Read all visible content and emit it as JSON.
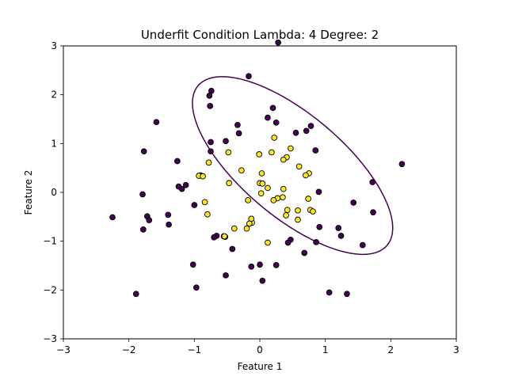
{
  "chart_data": {
    "type": "scatter",
    "title": "Underfit Condition  Lambda: 4 Degree: 2",
    "xlabel": "Feature 1",
    "ylabel": "Feature 2",
    "xlim": [
      -3,
      3
    ],
    "ylim": [
      -3,
      3
    ],
    "xticks": [
      -3,
      -2,
      -1,
      0,
      1,
      2,
      3
    ],
    "yticks": [
      -3,
      -2,
      -1,
      0,
      1,
      2,
      3
    ],
    "grid": false,
    "legend": "none",
    "colors": {
      "class_0": "#440154",
      "class_1": "#fde725",
      "boundary": "#440154",
      "marker_edge": "#000000"
    },
    "decision_boundary": {
      "shape": "ellipse",
      "center": [
        0.5,
        0.55
      ],
      "semi_axes": [
        0.9,
        2.2
      ],
      "rotation_deg": 38
    },
    "series": [
      {
        "class": 0,
        "points": [
          [
            0.28,
            3.07
          ],
          [
            -0.17,
            2.38
          ],
          [
            -0.74,
            2.08
          ],
          [
            -0.77,
            1.98
          ],
          [
            0.2,
            1.73
          ],
          [
            -0.76,
            1.77
          ],
          [
            0.12,
            1.53
          ],
          [
            0.25,
            1.43
          ],
          [
            -1.58,
            1.44
          ],
          [
            -0.34,
            1.38
          ],
          [
            0.78,
            1.36
          ],
          [
            0.71,
            1.26
          ],
          [
            0.55,
            1.22
          ],
          [
            -0.32,
            1.21
          ],
          [
            -0.75,
            1.03
          ],
          [
            -0.52,
            1.05
          ],
          [
            -1.77,
            0.84
          ],
          [
            0.85,
            0.86
          ],
          [
            -0.75,
            0.84
          ],
          [
            -1.26,
            0.64
          ],
          [
            -1.24,
            0.12
          ],
          [
            -1.13,
            0.15
          ],
          [
            -1.19,
            0.07
          ],
          [
            1.72,
            0.21
          ],
          [
            2.17,
            0.58
          ],
          [
            -0.91,
            0.35
          ],
          [
            0.9,
            0.01
          ],
          [
            -1.79,
            -0.04
          ],
          [
            -1.0,
            -0.26
          ],
          [
            1.43,
            -0.21
          ],
          [
            -1.72,
            -0.49
          ],
          [
            -1.69,
            -0.57
          ],
          [
            1.73,
            -0.41
          ],
          [
            -2.25,
            -0.51
          ],
          [
            -1.4,
            -0.46
          ],
          [
            -1.39,
            -0.66
          ],
          [
            -1.78,
            -0.76
          ],
          [
            0.91,
            -0.71
          ],
          [
            1.2,
            -0.73
          ],
          [
            1.24,
            -0.89
          ],
          [
            -0.66,
            -0.89
          ],
          [
            -0.7,
            -0.92
          ],
          [
            -0.55,
            -0.9
          ],
          [
            -0.53,
            -0.91
          ],
          [
            0.47,
            -0.97
          ],
          [
            0.43,
            -1.03
          ],
          [
            0.86,
            -1.02
          ],
          [
            -0.15,
            -0.63
          ],
          [
            -0.42,
            -1.16
          ],
          [
            1.57,
            -1.08
          ],
          [
            0.68,
            -1.24
          ],
          [
            -1.02,
            -1.48
          ],
          [
            0.0,
            -1.48
          ],
          [
            -0.13,
            -1.52
          ],
          [
            0.25,
            -1.49
          ],
          [
            -0.52,
            -1.7
          ],
          [
            0.04,
            -1.81
          ],
          [
            -0.97,
            -1.95
          ],
          [
            1.06,
            -2.05
          ],
          [
            1.33,
            -2.08
          ],
          [
            -1.89,
            -2.08
          ]
        ]
      },
      {
        "class": 1,
        "points": [
          [
            0.22,
            1.12
          ],
          [
            0.47,
            0.9
          ],
          [
            -0.78,
            0.61
          ],
          [
            0.41,
            0.72
          ],
          [
            0.36,
            0.67
          ],
          [
            0.18,
            0.82
          ],
          [
            -0.48,
            0.82
          ],
          [
            -0.01,
            0.78
          ],
          [
            0.6,
            0.53
          ],
          [
            -0.28,
            0.45
          ],
          [
            0.03,
            0.39
          ],
          [
            0.75,
            0.39
          ],
          [
            0.7,
            0.35
          ],
          [
            -0.93,
            0.34
          ],
          [
            -0.87,
            0.33
          ],
          [
            -0.47,
            0.19
          ],
          [
            0.0,
            0.19
          ],
          [
            0.04,
            0.18
          ],
          [
            0.12,
            0.09
          ],
          [
            0.36,
            0.07
          ],
          [
            0.02,
            -0.02
          ],
          [
            0.35,
            -0.1
          ],
          [
            0.27,
            -0.12
          ],
          [
            0.21,
            -0.16
          ],
          [
            -0.18,
            -0.16
          ],
          [
            0.74,
            -0.13
          ],
          [
            -0.84,
            -0.2
          ],
          [
            0.42,
            -0.36
          ],
          [
            0.58,
            -0.37
          ],
          [
            0.77,
            -0.36
          ],
          [
            0.81,
            -0.39
          ],
          [
            -0.8,
            -0.45
          ],
          [
            0.4,
            -0.47
          ],
          [
            0.58,
            -0.56
          ],
          [
            -0.12,
            -0.62
          ],
          [
            -0.13,
            -0.54
          ],
          [
            -0.16,
            -0.64
          ],
          [
            -0.39,
            -0.74
          ],
          [
            -0.2,
            -0.74
          ],
          [
            -0.54,
            -0.9
          ],
          [
            0.12,
            -1.03
          ]
        ]
      }
    ]
  }
}
